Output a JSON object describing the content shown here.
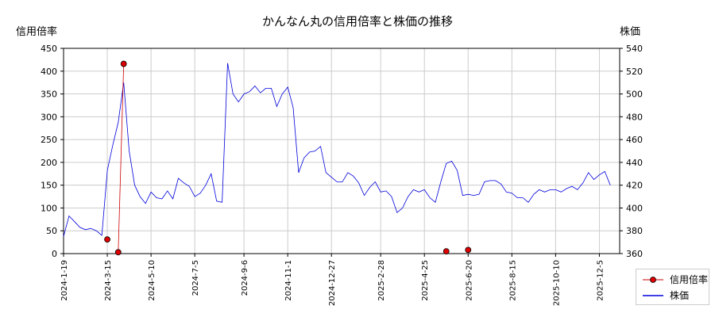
{
  "chart_data": {
    "type": "line",
    "title": "かんなん丸の信用倍率と株価の推移",
    "ylabel_left": "信用倍率",
    "ylabel_right": "株価",
    "ylim_left": [
      0,
      450
    ],
    "ylim_right": [
      360,
      540
    ],
    "yticks_left": [
      0,
      50,
      100,
      150,
      200,
      250,
      300,
      350,
      400,
      450
    ],
    "yticks_right": [
      360,
      380,
      400,
      420,
      440,
      460,
      480,
      500,
      520,
      540
    ],
    "x_range": [
      "2024-01-19",
      "2025-12-31"
    ],
    "x_ticks": [
      "2024-1-19",
      "2024-3-15",
      "2024-5-10",
      "2024-7-5",
      "2024-9-6",
      "2024-11-1",
      "2024-12-27",
      "2025-2-28",
      "2025-4-25",
      "2025-6-20",
      "2025-8-15",
      "2025-10-10",
      "2025-12-5"
    ],
    "grid": true,
    "legend_position": "right-bottom",
    "colors": {
      "margin_ratio": "#cc0000",
      "marker_fill": "#dd0000",
      "stock_price": "#0000dd"
    },
    "series": [
      {
        "name": "信用倍率",
        "type": "line-marker",
        "points": [
          {
            "x": "2024-03-15",
            "y": 31
          },
          {
            "x": "2024-03-29",
            "y": 3
          },
          {
            "x": "2024-04-05",
            "y": 416
          },
          {
            "x": "2025-05-23",
            "y": 5
          },
          {
            "x": "2025-06-20",
            "y": 8
          }
        ]
      },
      {
        "name": "株価",
        "type": "line",
        "points": [
          {
            "x": "2024-01-19",
            "y": 375
          },
          {
            "x": "2024-01-26",
            "y": 393
          },
          {
            "x": "2024-02-02",
            "y": 388
          },
          {
            "x": "2024-02-09",
            "y": 383
          },
          {
            "x": "2024-02-16",
            "y": 381
          },
          {
            "x": "2024-02-23",
            "y": 382
          },
          {
            "x": "2024-03-01",
            "y": 380
          },
          {
            "x": "2024-03-08",
            "y": 376
          },
          {
            "x": "2024-03-15",
            "y": 433
          },
          {
            "x": "2024-03-22",
            "y": 455
          },
          {
            "x": "2024-03-29",
            "y": 475
          },
          {
            "x": "2024-04-05",
            "y": 510
          },
          {
            "x": "2024-04-12",
            "y": 450
          },
          {
            "x": "2024-04-19",
            "y": 420
          },
          {
            "x": "2024-04-26",
            "y": 410
          },
          {
            "x": "2024-05-03",
            "y": 404
          },
          {
            "x": "2024-05-10",
            "y": 414
          },
          {
            "x": "2024-05-17",
            "y": 409
          },
          {
            "x": "2024-05-24",
            "y": 408
          },
          {
            "x": "2024-05-31",
            "y": 415
          },
          {
            "x": "2024-06-07",
            "y": 408
          },
          {
            "x": "2024-06-14",
            "y": 426
          },
          {
            "x": "2024-06-21",
            "y": 422
          },
          {
            "x": "2024-06-28",
            "y": 419
          },
          {
            "x": "2024-07-05",
            "y": 410
          },
          {
            "x": "2024-07-12",
            "y": 413
          },
          {
            "x": "2024-07-19",
            "y": 420
          },
          {
            "x": "2024-07-26",
            "y": 430
          },
          {
            "x": "2024-08-02",
            "y": 406
          },
          {
            "x": "2024-08-09",
            "y": 405
          },
          {
            "x": "2024-08-16",
            "y": 527
          },
          {
            "x": "2024-08-23",
            "y": 500
          },
          {
            "x": "2024-08-30",
            "y": 493
          },
          {
            "x": "2024-09-06",
            "y": 500
          },
          {
            "x": "2024-09-13",
            "y": 502
          },
          {
            "x": "2024-09-20",
            "y": 507
          },
          {
            "x": "2024-09-27",
            "y": 501
          },
          {
            "x": "2024-10-04",
            "y": 505
          },
          {
            "x": "2024-10-11",
            "y": 505
          },
          {
            "x": "2024-10-18",
            "y": 489
          },
          {
            "x": "2024-10-25",
            "y": 500
          },
          {
            "x": "2024-11-01",
            "y": 506
          },
          {
            "x": "2024-11-08",
            "y": 488
          },
          {
            "x": "2024-11-15",
            "y": 431
          },
          {
            "x": "2024-11-22",
            "y": 444
          },
          {
            "x": "2024-11-29",
            "y": 449
          },
          {
            "x": "2024-12-06",
            "y": 450
          },
          {
            "x": "2024-12-13",
            "y": 454
          },
          {
            "x": "2024-12-20",
            "y": 431
          },
          {
            "x": "2024-12-27",
            "y": 427
          },
          {
            "x": "2025-01-03",
            "y": 423
          },
          {
            "x": "2025-01-10",
            "y": 423
          },
          {
            "x": "2025-01-17",
            "y": 431
          },
          {
            "x": "2025-01-24",
            "y": 428
          },
          {
            "x": "2025-01-31",
            "y": 422
          },
          {
            "x": "2025-02-07",
            "y": 411
          },
          {
            "x": "2025-02-14",
            "y": 418
          },
          {
            "x": "2025-02-21",
            "y": 423
          },
          {
            "x": "2025-02-28",
            "y": 414
          },
          {
            "x": "2025-03-07",
            "y": 415
          },
          {
            "x": "2025-03-14",
            "y": 410
          },
          {
            "x": "2025-03-21",
            "y": 396
          },
          {
            "x": "2025-03-28",
            "y": 400
          },
          {
            "x": "2025-04-04",
            "y": 410
          },
          {
            "x": "2025-04-11",
            "y": 416
          },
          {
            "x": "2025-04-18",
            "y": 414
          },
          {
            "x": "2025-04-25",
            "y": 416
          },
          {
            "x": "2025-05-02",
            "y": 409
          },
          {
            "x": "2025-05-09",
            "y": 405
          },
          {
            "x": "2025-05-16",
            "y": 423
          },
          {
            "x": "2025-05-23",
            "y": 439
          },
          {
            "x": "2025-05-30",
            "y": 441
          },
          {
            "x": "2025-06-06",
            "y": 433
          },
          {
            "x": "2025-06-13",
            "y": 411
          },
          {
            "x": "2025-06-20",
            "y": 412
          },
          {
            "x": "2025-06-27",
            "y": 411
          },
          {
            "x": "2025-07-04",
            "y": 412
          },
          {
            "x": "2025-07-11",
            "y": 423
          },
          {
            "x": "2025-07-18",
            "y": 424
          },
          {
            "x": "2025-07-25",
            "y": 424
          },
          {
            "x": "2025-08-01",
            "y": 421
          },
          {
            "x": "2025-08-08",
            "y": 414
          },
          {
            "x": "2025-08-15",
            "y": 413
          },
          {
            "x": "2025-08-22",
            "y": 409
          },
          {
            "x": "2025-08-29",
            "y": 409
          },
          {
            "x": "2025-09-05",
            "y": 405
          },
          {
            "x": "2025-09-12",
            "y": 412
          },
          {
            "x": "2025-09-19",
            "y": 416
          },
          {
            "x": "2025-09-26",
            "y": 414
          },
          {
            "x": "2025-10-03",
            "y": 416
          },
          {
            "x": "2025-10-10",
            "y": 416
          },
          {
            "x": "2025-10-17",
            "y": 414
          },
          {
            "x": "2025-10-24",
            "y": 417
          },
          {
            "x": "2025-10-31",
            "y": 419
          },
          {
            "x": "2025-11-07",
            "y": 416
          },
          {
            "x": "2025-11-14",
            "y": 422
          },
          {
            "x": "2025-11-21",
            "y": 431
          },
          {
            "x": "2025-11-28",
            "y": 425
          },
          {
            "x": "2025-12-05",
            "y": 429
          },
          {
            "x": "2025-12-12",
            "y": 432
          },
          {
            "x": "2025-12-19",
            "y": 420
          }
        ]
      }
    ]
  }
}
